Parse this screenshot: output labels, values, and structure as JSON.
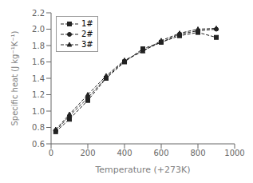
{
  "chart_data": {
    "type": "line",
    "xlabel": "Temperature  (+273K)",
    "ylabel": "Specific heat (J kg⁻¹K⁻¹)",
    "x": [
      25,
      100,
      200,
      300,
      400,
      500,
      600,
      700,
      800,
      900
    ],
    "xlim": [
      0,
      1000
    ],
    "xticks": [
      0,
      200,
      400,
      600,
      800,
      1000
    ],
    "ylim": [
      0.6,
      2.2
    ],
    "yticks": [
      0.6,
      0.8,
      {
        "value": 1,
        "label": "1.0"
      },
      1.2,
      1.4,
      1.6,
      1.8,
      {
        "value": 2,
        "label": "2.0"
      },
      2.2
    ],
    "legend": "upper left",
    "series": [
      {
        "name": "1#",
        "color": "#222222",
        "marker": "square",
        "line_style": "dashed",
        "values": [
          0.748,
          0.9,
          1.13,
          1.4,
          1.6,
          1.76,
          1.84,
          1.92,
          1.96,
          1.9
        ]
      },
      {
        "name": "2#",
        "color": "#222222",
        "marker": "circle",
        "line_style": "dashed",
        "values": [
          0.76,
          0.94,
          1.16,
          1.41,
          1.61,
          1.74,
          1.84,
          1.94,
          1.98,
          2.0
        ]
      },
      {
        "name": "3#",
        "color": "#222222",
        "marker": "triangle",
        "line_style": "dashed",
        "values": [
          0.775,
          0.96,
          1.2,
          1.43,
          1.62,
          1.73,
          1.86,
          1.95,
          2.0,
          2.01
        ]
      }
    ]
  }
}
